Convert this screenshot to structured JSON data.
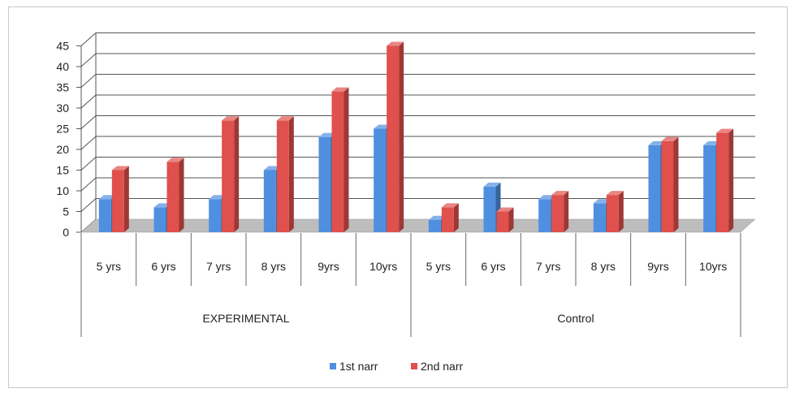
{
  "chart_data": {
    "type": "bar",
    "style": "3d-clustered-column",
    "groups": [
      {
        "label": "EXPERIMENTAL",
        "categories": [
          "5 yrs",
          "6 yrs",
          "7 yrs",
          "8 yrs",
          "9yrs",
          "10yrs"
        ]
      },
      {
        "label": "Control",
        "categories": [
          "5 yrs",
          "6 yrs",
          "7 yrs",
          "8 yrs",
          "9yrs",
          "10yrs"
        ]
      }
    ],
    "series": [
      {
        "name": "1st narr",
        "color": "#4f8fe0",
        "values": [
          8,
          6,
          8,
          15,
          23,
          25,
          3,
          11,
          8,
          7,
          21,
          21
        ]
      },
      {
        "name": "2nd narr",
        "color": "#e0504c",
        "values": [
          15,
          17,
          27,
          27,
          34,
          45,
          6,
          5,
          9,
          9,
          22,
          24
        ]
      }
    ],
    "ylim": [
      0,
      45
    ],
    "yticks": [
      "0",
      "5",
      "10",
      "15",
      "20",
      "25",
      "30",
      "35",
      "40",
      "45"
    ],
    "grid": true,
    "legend_position": "bottom"
  }
}
